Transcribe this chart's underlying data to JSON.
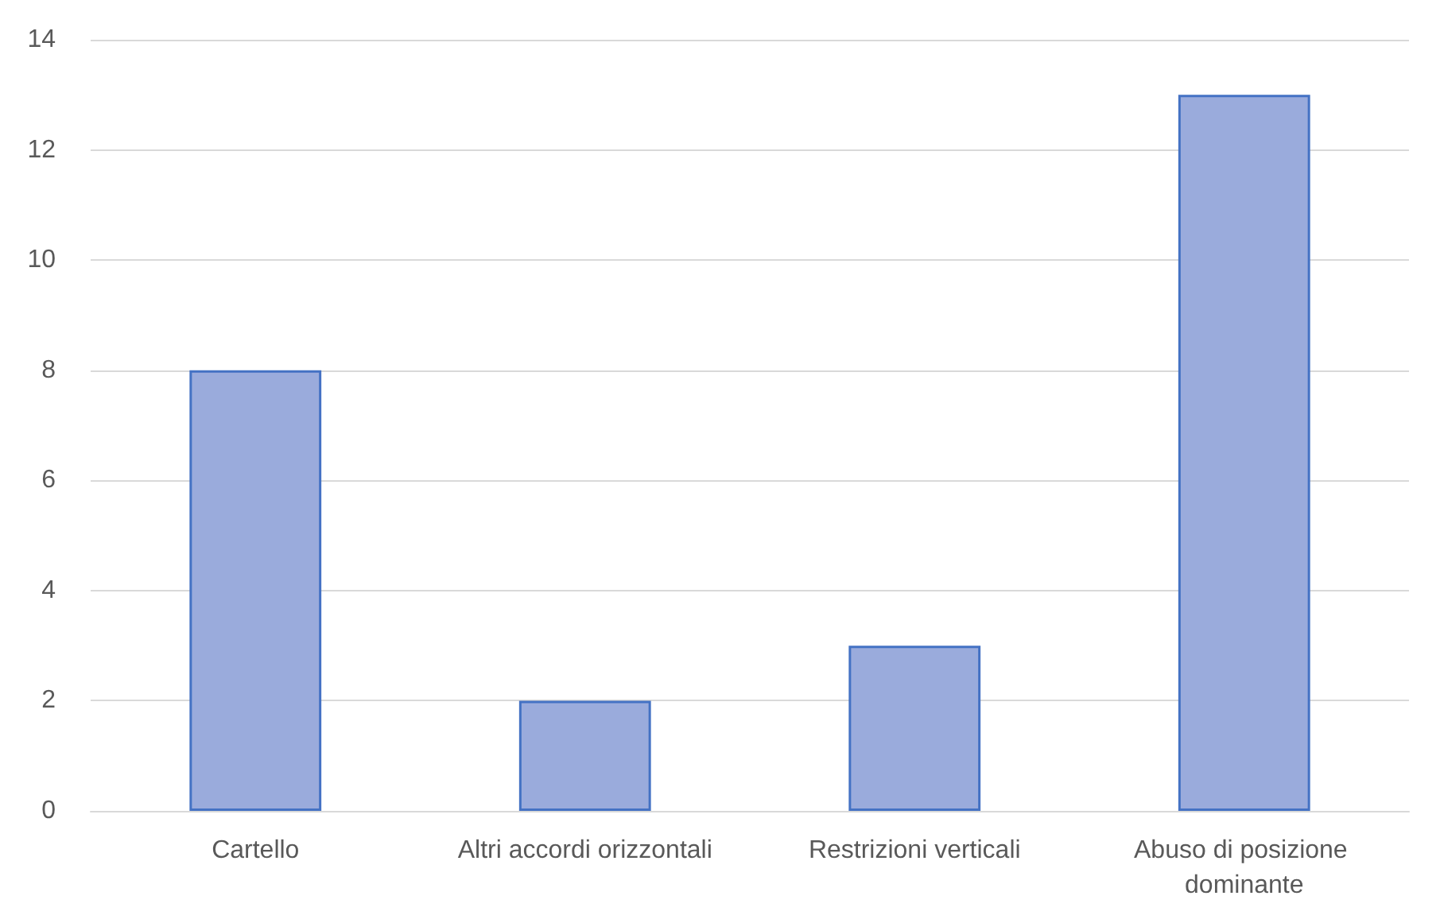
{
  "chart_data": {
    "type": "bar",
    "categories": [
      "Cartello",
      "Altri accordi orizzontali",
      "Restrizioni verticali",
      "Abuso di posizione dominante"
    ],
    "values": [
      8,
      2,
      3,
      13
    ],
    "color": "#9aabdc",
    "ylim": [
      0,
      14
    ],
    "yticks": [
      0,
      2,
      4,
      6,
      8,
      10,
      12,
      14
    ],
    "grid": "y"
  }
}
